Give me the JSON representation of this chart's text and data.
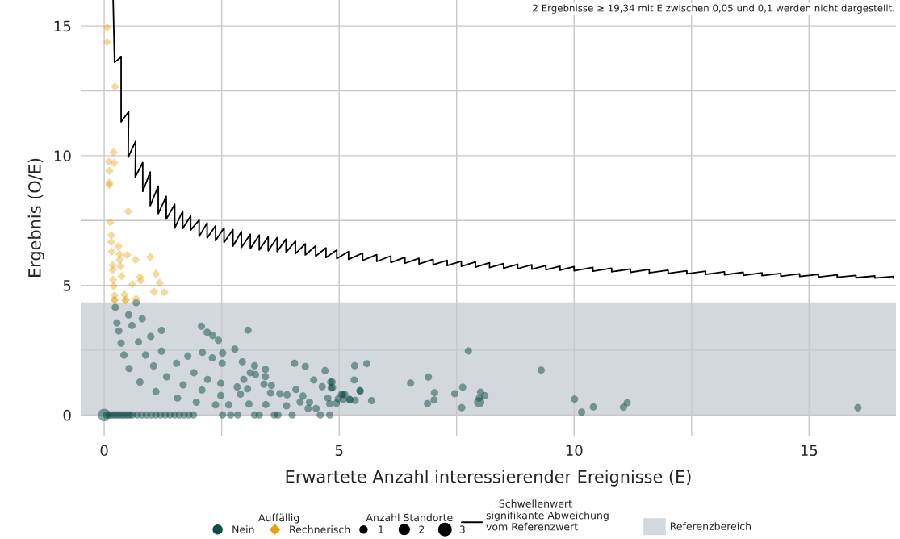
{
  "chart_data": {
    "type": "bubble",
    "xlabel": "Erwartete Anzahl interessierender Ereignisse (E)",
    "ylabel": "Ergebnis (O/E)",
    "legend_title": "Auffällig",
    "xlim": [
      -0.5,
      16.85
    ],
    "ylim": [
      -0.8,
      16
    ],
    "xticks": [
      0,
      {
        "value": 2.5,
        "label": null
      },
      5,
      {
        "value": 7.5,
        "label": null
      },
      10,
      {
        "value": 12.5,
        "label": null
      },
      15
    ],
    "yticks": [
      0,
      {
        "value": 2.5,
        "label": null
      },
      5,
      {
        "value": 7.5,
        "label": null
      },
      10,
      {
        "value": 12.5,
        "label": null
      },
      15
    ],
    "grid": true,
    "legend": "bottom",
    "size_legend": [
      1,
      2,
      3
    ],
    "annotations": [
      "2 Ergebnisse ≥ 19,34 mit E zwischen 0,05 und 0,1 werden nicht dargestellt.",
      "Anzahl Standorte",
      "Schwellenwert"
    ],
    "bands": [
      {
        "axis": "y",
        "from": 0,
        "to": 4.34,
        "label": "Referenzbereich",
        "color": "#d3d8dc"
      }
    ],
    "series": [
      {
        "name": "Nein",
        "color": "#114d48",
        "marker": "circle",
        "x": [
          0,
          0.05,
          0.1,
          0.15,
          0.2,
          0.25,
          0.3,
          0.35,
          0.4,
          0.45,
          0.5,
          0.55,
          0.6,
          0.7,
          0.8,
          0.9,
          1.0,
          1.1,
          1.2,
          1.3,
          1.4,
          1.5,
          1.6,
          1.7,
          1.8,
          1.9,
          2.52,
          2.69,
          2.84,
          3.2,
          3.3,
          3.62,
          3.7,
          4.0,
          4.6,
          4.8,
          0.235,
          0.27,
          0.31,
          0.36,
          0.42,
          0.53,
          0.76,
          1.1,
          1.56,
          1.96,
          2.37,
          2.65,
          0.52,
          0.59,
          0.73,
          0.88,
          1.05,
          1.33,
          1.68,
          2.08,
          2.48,
          0.68,
          0.81,
          0.99,
          1.22,
          1.54,
          1.91,
          2.2,
          2.48,
          1.22,
          2.07,
          2.19,
          2.31,
          2.43,
          3.06,
          2.78,
          1.78,
          2.09,
          2.3,
          2.52,
          2.51,
          2.94,
          3.2,
          3.43,
          3.11,
          2.97,
          3.22,
          3.43,
          3.4,
          3.56,
          2.83,
          3.05,
          3.54,
          3.74,
          3.89,
          4.05,
          4.28,
          4.08,
          4.23,
          4.17,
          4.37,
          4.34,
          4.51,
          4.46,
          4.64,
          4.7,
          4.82,
          4.83,
          4.76,
          4.8,
          4.94,
          5.05,
          5.23,
          5.33,
          5.32,
          5.34,
          5.45,
          2.9,
          3.08,
          3.44,
          3.88,
          5.59,
          4.85,
          4.86,
          4.98,
          5.08,
          5.12,
          5.09,
          5.22,
          5.44,
          5.69,
          6.52,
          6.9,
          7.03,
          7.02,
          6.88,
          7.46,
          7.63,
          7.75,
          7.61,
          8.01,
          8.1,
          7.98,
          7.98,
          9.3,
          10.01,
          10.16,
          10.41,
          11.05,
          11.13,
          16.04
        ],
        "values": [
          0,
          0,
          0,
          0,
          0,
          0,
          0,
          0,
          0,
          0,
          0,
          0,
          0,
          0,
          0,
          0,
          0,
          0,
          0,
          0,
          0,
          0,
          0,
          0,
          0,
          0,
          0,
          0,
          0,
          0,
          0,
          0,
          0,
          0,
          0,
          0,
          4.15,
          3.55,
          3.24,
          2.77,
          2.31,
          1.79,
          1.27,
          0.9,
          0.65,
          0.49,
          0.39,
          0.39,
          3.86,
          3.45,
          2.82,
          2.31,
          1.89,
          1.47,
          1.16,
          0.96,
          0.75,
          4.33,
          3.71,
          3.03,
          2.46,
          1.99,
          1.63,
          1.37,
          1.22,
          3.26,
          3.42,
          3.19,
          3.06,
          2.88,
          3.27,
          2.54,
          2.27,
          2.41,
          2.2,
          2.39,
          1.99,
          2.05,
          1.9,
          1.76,
          1.63,
          1.37,
          1.56,
          1.48,
          1.18,
          1.14,
          1.08,
          1.01,
          0.85,
          0.82,
          0.78,
          1.99,
          1.87,
          0.98,
          0.73,
          0.5,
          0.49,
          0.25,
          0.25,
          1.35,
          1.09,
          1.71,
          1.27,
          1.04,
          0.65,
          0.43,
          0.45,
          0.8,
          0.59,
          1.9,
          1.35,
          0.56,
          0.92,
          0.8,
          0.42,
          0.4,
          0.35,
          1.98,
          1.27,
          1.06,
          0.62,
          0.79,
          0.79,
          0.6,
          0.6,
          0.94,
          0.55,
          1.23,
          1.46,
          0.86,
          0.58,
          0.44,
          0.82,
          1.07,
          2.47,
          0.28,
          0.88,
          0.74,
          0.65,
          0.49,
          1.73,
          0.61,
          0.11,
          0.31,
          0.3,
          0.47,
          0.28
        ],
        "sizes": [
          3,
          1,
          1,
          1,
          1,
          1,
          1,
          1,
          1,
          1,
          1,
          1,
          1,
          1,
          1,
          1,
          1,
          1,
          1,
          1,
          1,
          1,
          1,
          1,
          1,
          1,
          1,
          1,
          1,
          1,
          1,
          1,
          1,
          1,
          1,
          1,
          1,
          1,
          1,
          1,
          1,
          1,
          1,
          1,
          1,
          1,
          1,
          1,
          1,
          1,
          1,
          1,
          1,
          1,
          1,
          1,
          1,
          1,
          1,
          1,
          1,
          1,
          1,
          1,
          1,
          1,
          1,
          1,
          1,
          1,
          1,
          1,
          1,
          1,
          1,
          1,
          1,
          1,
          1,
          1,
          1,
          1,
          1,
          1,
          1,
          1,
          1,
          1,
          1,
          1,
          1,
          1,
          1,
          1,
          1,
          1,
          1,
          1,
          1,
          1,
          1,
          1,
          1,
          1,
          1,
          1,
          1,
          1,
          1,
          1,
          1,
          1,
          1,
          1,
          1,
          1,
          1,
          1,
          1,
          1,
          1,
          1,
          1,
          1,
          1,
          1,
          1,
          1,
          1,
          1,
          1,
          1,
          1,
          1,
          1,
          1,
          1,
          1,
          1,
          2,
          1,
          1,
          1,
          1,
          1,
          1,
          1
        ]
      },
      {
        "name": "Rechnerisch",
        "color": "#e6a010",
        "marker": "diamond",
        "x": [
          0.06,
          0.06,
          0.23,
          0.2,
          0.1,
          0.21,
          0.11,
          0.11,
          0.11,
          0.51,
          0.13,
          0.15,
          0.15,
          0.3,
          0.16,
          0.33,
          0.49,
          0.67,
          0.33,
          0.98,
          0.18,
          0.35,
          0.18,
          0.37,
          0.76,
          0.78,
          1.1,
          1.18,
          0.6,
          0.19,
          0.2,
          1.06,
          1.28,
          0.22,
          0.43,
          0.22,
          0.46,
          0.68,
          0.22,
          0.45
        ],
        "values": [
          14.94,
          14.38,
          12.66,
          10.13,
          9.77,
          9.72,
          9.41,
          8.95,
          8.87,
          7.84,
          7.43,
          6.93,
          6.67,
          6.5,
          6.3,
          6.2,
          6.17,
          5.98,
          5.98,
          6.09,
          5.78,
          5.73,
          5.59,
          5.35,
          5.32,
          5.18,
          5.44,
          5.09,
          5.04,
          5.21,
          4.96,
          4.75,
          4.73,
          4.61,
          4.64,
          4.45,
          4.45,
          4.48,
          4.43,
          4.41
        ],
        "sizes": [
          1,
          1,
          1,
          1,
          1,
          1,
          1,
          1,
          1,
          1,
          1,
          1,
          1,
          1,
          1,
          1,
          1,
          1,
          1,
          1,
          1,
          1,
          1,
          1,
          1,
          1,
          1,
          1,
          1,
          1,
          1,
          1,
          1,
          1,
          1,
          1,
          1,
          1,
          1,
          1
        ]
      },
      {
        "type": "line",
        "name": "signifikante Abweichung\nvom Referenzwert",
        "color": "#000000",
        "x": [
          0.19,
          0.22,
          0.36,
          0.36,
          0.52,
          0.51,
          0.67,
          0.66,
          0.82,
          0.82,
          0.98,
          0.98,
          1.15,
          1.15,
          1.32,
          1.32,
          1.5,
          1.5,
          1.67,
          1.67,
          1.84,
          1.84,
          2.02,
          2.02,
          2.19,
          2.19,
          2.37,
          2.37,
          2.55,
          2.55,
          2.74,
          2.74,
          2.92,
          2.92,
          3.11,
          3.11,
          3.3,
          3.3,
          3.49,
          3.49,
          3.68,
          3.68,
          3.87,
          3.87,
          4.07,
          4.07,
          4.28,
          4.28,
          4.5,
          4.5,
          4.72,
          4.72,
          4.95,
          4.95,
          5.2,
          5.2,
          5.5,
          5.5,
          5.8,
          5.8,
          6.1,
          6.1,
          6.4,
          6.4,
          6.7,
          6.7,
          7.0,
          7.0,
          7.3,
          7.3,
          7.6,
          7.6,
          7.9,
          7.9,
          8.2,
          8.2,
          8.5,
          8.5,
          8.8,
          8.8,
          9.1,
          9.1,
          9.4,
          9.4,
          9.7,
          9.7,
          10.0,
          10.0,
          10.4,
          10.4,
          10.8,
          10.8,
          11.2,
          11.2,
          11.6,
          11.6,
          12.0,
          12.0,
          12.4,
          12.4,
          12.8,
          12.8,
          13.2,
          13.2,
          13.6,
          13.6,
          14.0,
          14.0,
          14.4,
          14.4,
          14.8,
          14.8,
          15.2,
          15.2,
          15.6,
          15.6,
          16.0,
          16.0,
          16.4,
          16.4,
          16.8,
          16.8
        ],
        "values": [
          16.0,
          13.6,
          13.8,
          11.3,
          11.7,
          9.94,
          10.56,
          9.18,
          9.73,
          8.62,
          9.37,
          8.07,
          8.83,
          7.76,
          8.43,
          7.55,
          8.12,
          7.21,
          7.86,
          7.19,
          7.67,
          7.13,
          7.52,
          6.88,
          7.41,
          6.82,
          7.3,
          6.72,
          7.22,
          6.65,
          7.15,
          6.51,
          7.07,
          6.46,
          6.97,
          6.41,
          6.94,
          6.36,
          6.87,
          6.33,
          6.84,
          6.3,
          6.78,
          6.27,
          6.7,
          6.22,
          6.6,
          6.17,
          6.52,
          6.12,
          6.44,
          6.07,
          6.36,
          6.03,
          6.3,
          6.0,
          6.24,
          5.96,
          6.18,
          5.92,
          6.13,
          5.88,
          6.08,
          5.85,
          6.04,
          5.82,
          6.0,
          5.79,
          5.96,
          5.76,
          5.93,
          5.73,
          5.9,
          5.7,
          5.87,
          5.68,
          5.84,
          5.66,
          5.81,
          5.64,
          5.79,
          5.62,
          5.76,
          5.6,
          5.74,
          5.58,
          5.72,
          5.56,
          5.69,
          5.54,
          5.66,
          5.52,
          5.63,
          5.5,
          5.61,
          5.48,
          5.58,
          5.46,
          5.56,
          5.44,
          5.54,
          5.42,
          5.52,
          5.4,
          5.5,
          5.38,
          5.48,
          5.37,
          5.46,
          5.35,
          5.44,
          5.34,
          5.42,
          5.32,
          5.4,
          5.31,
          5.38,
          5.29,
          5.36,
          5.28,
          5.34,
          5.27
        ]
      }
    ]
  }
}
